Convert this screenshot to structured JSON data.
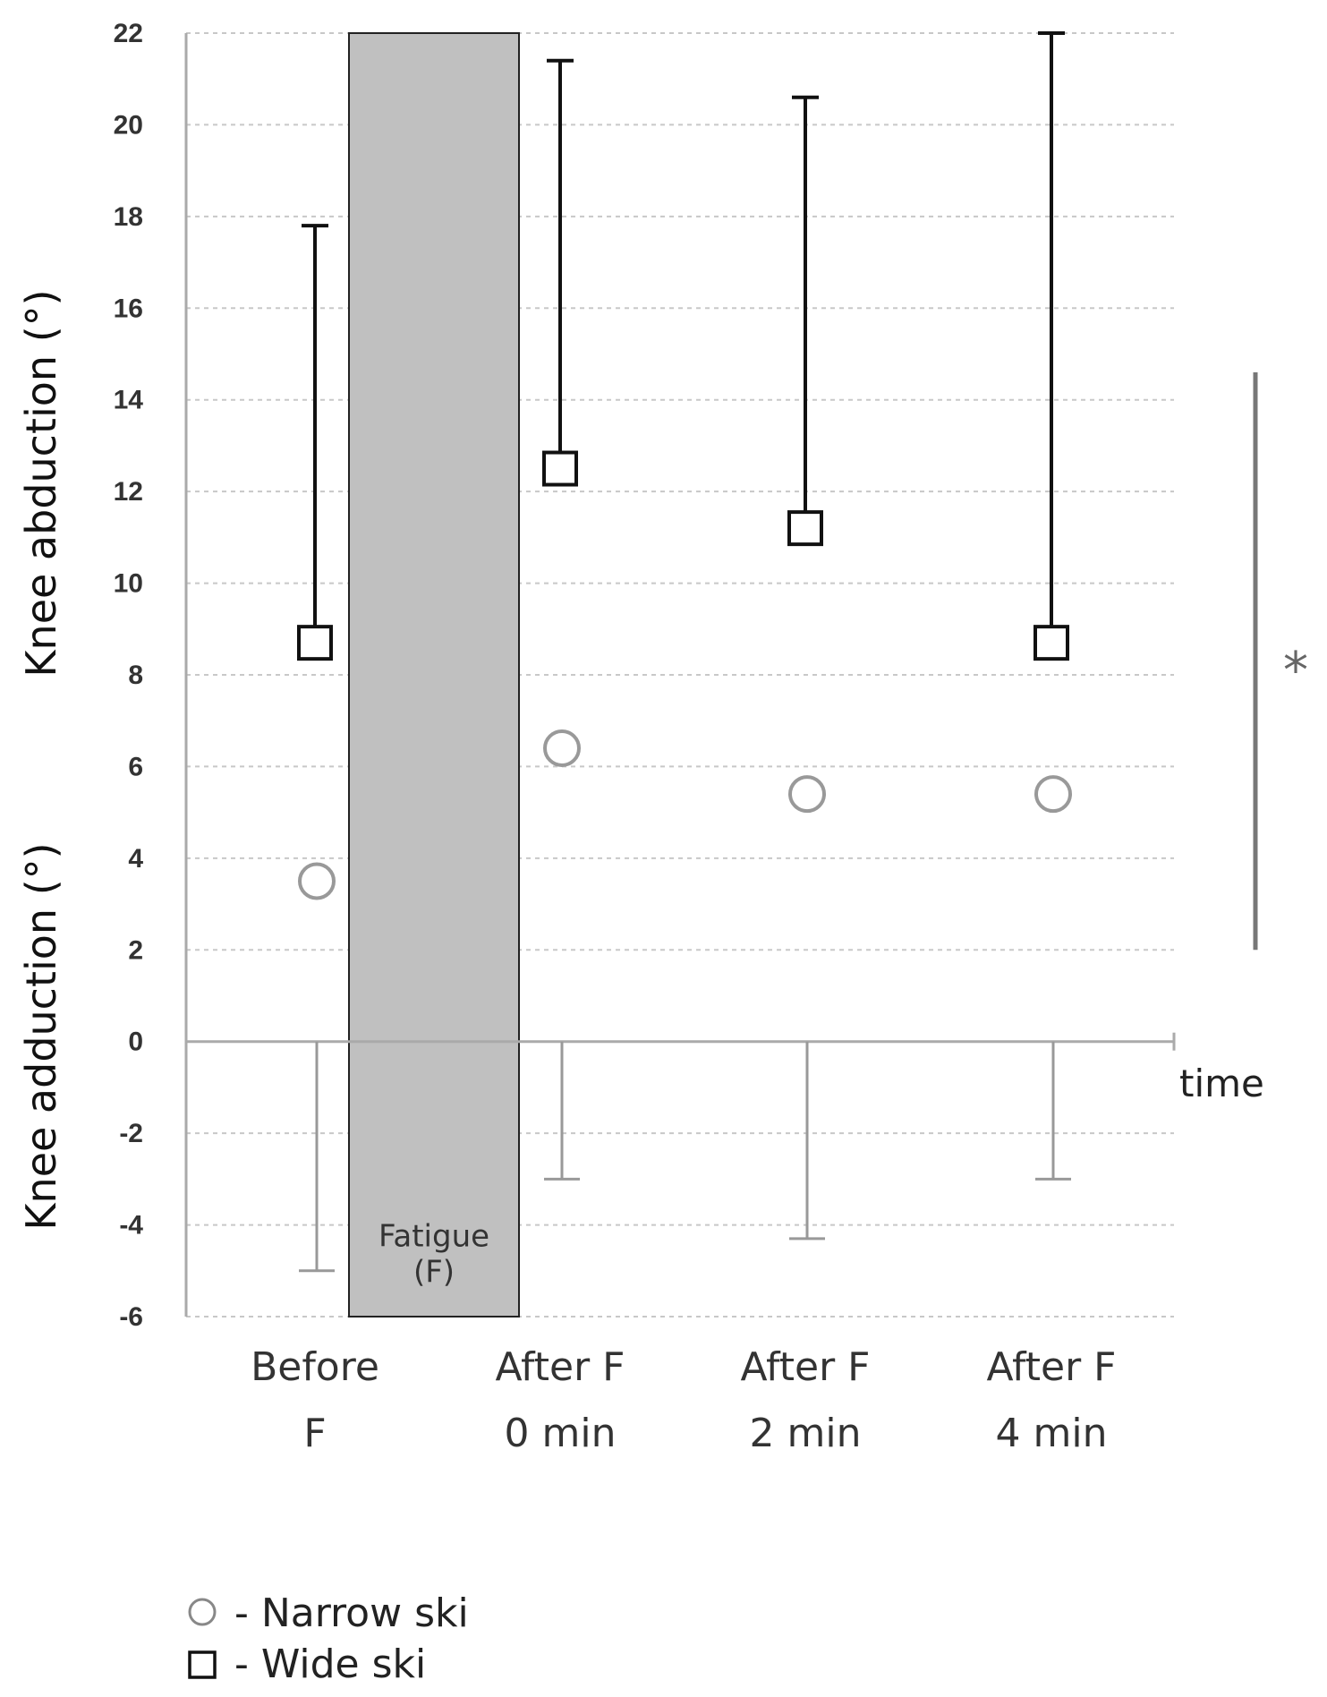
{
  "chart_data": {
    "type": "scatter",
    "ylabel_top": "Knee abduction (°)",
    "ylabel_bottom": "Knee adduction (°)",
    "xlabel": "time",
    "ylim": [
      -6,
      22
    ],
    "yticks": [
      22,
      20,
      18,
      16,
      14,
      12,
      10,
      8,
      6,
      4,
      2,
      0,
      -2,
      -4,
      -6
    ],
    "categories": [
      [
        "Before",
        "F"
      ],
      [
        "After F",
        "0 min"
      ],
      [
        "After F",
        "2 min"
      ],
      [
        "After F",
        "4 min"
      ]
    ],
    "fatigue_period": {
      "label_line1": "Fatigue",
      "label_line2": "(F)",
      "between": [
        "Before F",
        "After F 0 min"
      ],
      "ymin": -6,
      "ymax": 22
    },
    "series": [
      {
        "name": "Narrow ski",
        "marker": "circle",
        "color": "#999999",
        "values": [
          3.5,
          6.4,
          5.4,
          5.4
        ],
        "error_low": [
          -5.0,
          -3.0,
          -4.3,
          -3.0
        ],
        "error_high": [
          0,
          0,
          0,
          0
        ]
      },
      {
        "name": "Wide ski",
        "marker": "square",
        "color": "#111111",
        "values": [
          8.7,
          12.5,
          11.2,
          8.7
        ],
        "error_low": [
          8.7,
          12.5,
          11.2,
          8.7
        ],
        "error_high": [
          17.8,
          21.4,
          20.6,
          22.0
        ]
      }
    ],
    "significance": {
      "label": "*",
      "ymin": 2,
      "ymax": 14.6
    },
    "legend": [
      {
        "symbol": "○",
        "label": "- Narrow ski"
      },
      {
        "symbol": "□",
        "label": "- Wide ski"
      }
    ]
  }
}
